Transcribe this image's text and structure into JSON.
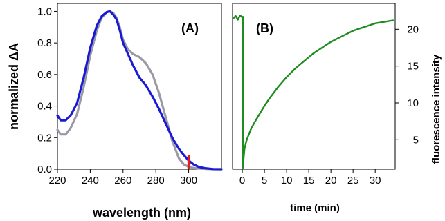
{
  "chart_data": [
    {
      "type": "line",
      "panel_label": "(A)",
      "xlabel": "wavelength (nm)",
      "ylabel": "normalized ΔA",
      "xlim": [
        220,
        320
      ],
      "ylim": [
        0,
        1.05
      ],
      "x_ticks": [
        "220",
        "240",
        "260",
        "280",
        "300"
      ],
      "y_ticks": [
        "0.0",
        "0.2",
        "0.4",
        "0.6",
        "0.8",
        "1.0"
      ],
      "x_tick_values": [
        220,
        240,
        260,
        280,
        300
      ],
      "y_tick_values": [
        0,
        0.2,
        0.4,
        0.6,
        0.8,
        1.0
      ],
      "grid": false,
      "series": [
        {
          "color": "#9a99a6",
          "x": [
            220,
            222,
            225,
            228,
            232,
            236,
            240,
            244,
            247,
            250,
            252,
            254,
            256,
            258,
            260,
            263,
            266,
            270,
            274,
            278,
            282,
            286,
            290,
            294,
            297,
            300,
            303,
            306,
            310,
            315,
            320
          ],
          "y": [
            0.25,
            0.22,
            0.22,
            0.26,
            0.35,
            0.52,
            0.72,
            0.88,
            0.96,
            0.995,
            1.0,
            0.99,
            0.96,
            0.9,
            0.82,
            0.76,
            0.73,
            0.71,
            0.67,
            0.6,
            0.48,
            0.33,
            0.18,
            0.07,
            0.03,
            0.015,
            0.008,
            0.005,
            0.002,
            0.0,
            0.0
          ]
        },
        {
          "color": "#1a1ad6",
          "x": [
            220,
            222,
            225,
            228,
            232,
            236,
            240,
            244,
            247,
            250,
            252,
            254,
            256,
            258,
            260,
            263,
            266,
            270,
            274,
            278,
            282,
            286,
            290,
            294,
            297,
            300,
            303,
            306,
            310,
            315,
            320
          ],
          "y": [
            0.34,
            0.31,
            0.31,
            0.34,
            0.42,
            0.58,
            0.77,
            0.91,
            0.97,
            0.995,
            1.0,
            0.98,
            0.95,
            0.88,
            0.8,
            0.73,
            0.66,
            0.58,
            0.53,
            0.46,
            0.38,
            0.29,
            0.2,
            0.13,
            0.09,
            0.055,
            0.03,
            0.015,
            0.006,
            0.001,
            0.0
          ]
        }
      ],
      "marker": {
        "x": 300,
        "y_from": 0.0,
        "y_to": 0.09,
        "color": "#e8191c"
      }
    },
    {
      "type": "line",
      "panel_label": "(B)",
      "xlabel": "time (min)",
      "ylabel": "fluorescence intensity",
      "xlim": [
        -2.2,
        34.5
      ],
      "ylim": [
        1,
        23.5
      ],
      "x_ticks": [
        "0",
        "5",
        "10",
        "15",
        "20",
        "25",
        "30"
      ],
      "y_ticks": [
        "5",
        "10",
        "15",
        "20"
      ],
      "x_tick_values": [
        0,
        5,
        10,
        15,
        20,
        25,
        30
      ],
      "y_tick_values": [
        5,
        10,
        15,
        20
      ],
      "grid": false,
      "series": [
        {
          "color": "#1e8c1e",
          "x": [
            -2.0,
            -1.5,
            -1.0,
            -0.5,
            0.0,
            0.15,
            0.15,
            0.3,
            0.5,
            1.0,
            2.0,
            3.0,
            4.0,
            5.0,
            6.0,
            7.0,
            8.0,
            9.0,
            10.0,
            11.0,
            12.0,
            13.0,
            14.0,
            15.0,
            16.0,
            17.0,
            18.0,
            19.0,
            20.0,
            21.0,
            22.0,
            23.0,
            24.0,
            25.0,
            26.0,
            27.0,
            28.0,
            29.0,
            30.0,
            31.0,
            32.0,
            33.0,
            34.0
          ],
          "y": [
            21.5,
            21.8,
            21.3,
            21.9,
            21.6,
            21.7,
            1.2,
            2.5,
            3.8,
            5.0,
            6.5,
            7.6,
            8.6,
            9.6,
            10.5,
            11.3,
            12.1,
            12.8,
            13.5,
            14.1,
            14.7,
            15.2,
            15.7,
            16.2,
            16.7,
            17.1,
            17.5,
            17.9,
            18.3,
            18.6,
            18.9,
            19.2,
            19.5,
            19.8,
            20.0,
            20.2,
            20.4,
            20.6,
            20.8,
            20.9,
            21.0,
            21.1,
            21.2
          ]
        }
      ]
    }
  ]
}
